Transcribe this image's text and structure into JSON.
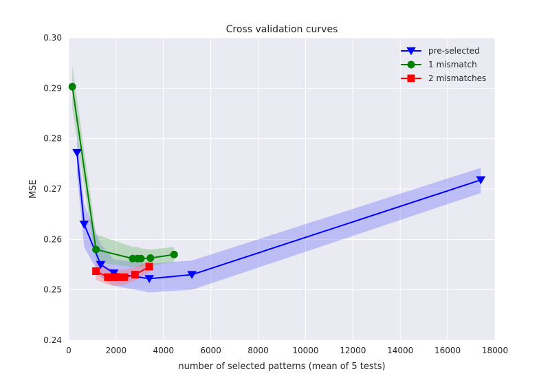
{
  "chart_data": {
    "type": "line",
    "title": "Cross validation curves",
    "xlabel": "number of selected patterns (mean of 5 tests)",
    "ylabel": "MSE",
    "xlim": [
      0,
      18000
    ],
    "ylim": [
      0.24,
      0.3
    ],
    "x_ticks": [
      0,
      2000,
      4000,
      6000,
      8000,
      10000,
      12000,
      14000,
      16000,
      18000
    ],
    "y_ticks": [
      0.24,
      0.25,
      0.26,
      0.27,
      0.28,
      0.29,
      0.3
    ],
    "x_tick_labels": [
      "0",
      "2000",
      "4000",
      "6000",
      "8000",
      "10000",
      "12000",
      "14000",
      "16000",
      "18000"
    ],
    "y_tick_labels": [
      "0.24",
      "0.25",
      "0.26",
      "0.27",
      "0.28",
      "0.29",
      "0.30"
    ],
    "grid": true,
    "legend_position": "top-right",
    "background_color": "#eaeaf2",
    "series": [
      {
        "name": "pre-selected",
        "color": "#0000ff",
        "marker": "triangle-down",
        "band_color": "#6b6bff",
        "x": [
          350,
          650,
          1350,
          1900,
          3400,
          5200,
          17400
        ],
        "y": [
          0.2772,
          0.263,
          0.255,
          0.2533,
          0.2522,
          0.253,
          0.2718
        ],
        "band_low": [
          0.273,
          0.2585,
          0.2525,
          0.2508,
          0.2495,
          0.25,
          0.2692
        ],
        "band_high": [
          0.281,
          0.267,
          0.259,
          0.256,
          0.2552,
          0.2558,
          0.2742
        ]
      },
      {
        "name": "1 mismatch",
        "color": "#008000",
        "marker": "circle",
        "band_color": "#63b563",
        "x": [
          150,
          1150,
          2700,
          2900,
          3050,
          3450,
          4450
        ],
        "y": [
          0.2903,
          0.258,
          0.2562,
          0.2562,
          0.2562,
          0.2563,
          0.257
        ],
        "band_low": [
          0.286,
          0.2555,
          0.2545,
          0.2545,
          0.2545,
          0.2548,
          0.2555
        ],
        "band_high": [
          0.2945,
          0.261,
          0.2585,
          0.2585,
          0.2582,
          0.258,
          0.2585
        ]
      },
      {
        "name": "2 mismatches",
        "color": "#ff0000",
        "marker": "square",
        "band_color": "#ff6b6b",
        "x": [
          1150,
          1650,
          1850,
          2050,
          2350,
          2800,
          3400
        ],
        "y": [
          0.2537,
          0.2525,
          0.2525,
          0.2525,
          0.2525,
          0.253,
          0.2546
        ],
        "band_low": [
          0.252,
          0.251,
          0.2508,
          0.2508,
          0.251,
          0.2518,
          0.2535
        ],
        "band_high": [
          0.2555,
          0.2545,
          0.2542,
          0.254,
          0.254,
          0.2545,
          0.2558
        ]
      }
    ]
  }
}
